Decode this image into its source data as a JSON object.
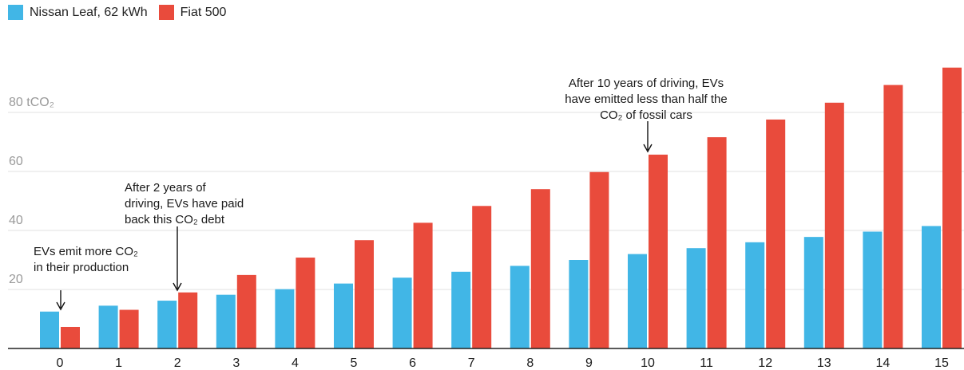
{
  "colors": {
    "nissan": "#41b6e6",
    "fiat": "#e94b3c",
    "grid": "#e2e2e2",
    "axis": "#222222"
  },
  "legend": {
    "series1": "Nissan Leaf, 62 kWh",
    "series2": "Fiat 500"
  },
  "chart_data": {
    "type": "bar",
    "categories": [
      "0",
      "1",
      "2",
      "3",
      "4",
      "5",
      "6",
      "7",
      "8",
      "9",
      "10",
      "11",
      "12",
      "13",
      "14",
      "15"
    ],
    "series": [
      {
        "name": "Nissan Leaf, 62 kWh",
        "values": [
          12.5,
          14.5,
          16.2,
          18.2,
          20.1,
          22.0,
          24.0,
          26.0,
          28.0,
          30.0,
          32.0,
          34.0,
          36.0,
          37.8,
          39.6,
          41.5
        ]
      },
      {
        "name": "Fiat 500",
        "values": [
          7.3,
          13.1,
          19.0,
          24.9,
          30.8,
          36.7,
          42.6,
          48.3,
          54.0,
          59.8,
          65.7,
          71.6,
          77.6,
          83.3,
          89.3,
          95.2
        ]
      }
    ],
    "ylim": [
      0,
      100
    ],
    "yticks": [
      {
        "value": 20,
        "label": "20"
      },
      {
        "value": 40,
        "label": "40"
      },
      {
        "value": 60,
        "label": "60"
      },
      {
        "value": 80,
        "label": "80 tCO₂"
      }
    ],
    "grid": true,
    "legend_position": "top-left",
    "annotations": [
      {
        "category": "0",
        "lines": [
          "EVs emit more CO₂",
          "in their production"
        ]
      },
      {
        "category": "2",
        "lines": [
          "After 2 years of",
          "driving, EVs have paid",
          "back this CO₂ debt"
        ]
      },
      {
        "category": "10",
        "lines": [
          "After 10 years of driving, EVs",
          "have emitted less than half the",
          "CO₂ of fossil cars"
        ]
      }
    ]
  }
}
